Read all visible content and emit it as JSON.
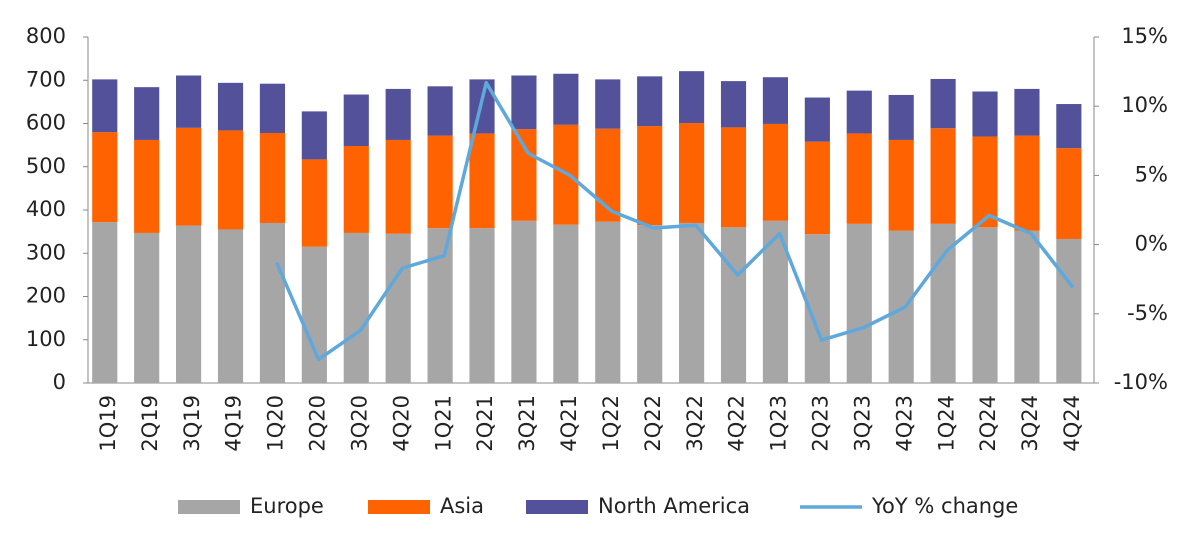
{
  "chart_data": {
    "type": "bar",
    "stacked": true,
    "categories": [
      "1Q19",
      "2Q19",
      "3Q19",
      "4Q19",
      "1Q20",
      "2Q20",
      "3Q20",
      "4Q20",
      "1Q21",
      "2Q21",
      "3Q21",
      "4Q21",
      "1Q22",
      "2Q22",
      "3Q22",
      "4Q22",
      "1Q23",
      "2Q23",
      "3Q23",
      "4Q23",
      "1Q24",
      "2Q24",
      "3Q24",
      "4Q24"
    ],
    "series": [
      {
        "name": "Europe",
        "color": "#a6a6a6",
        "type": "bar",
        "values": [
          372,
          347,
          364,
          355,
          370,
          315,
          347,
          345,
          358,
          358,
          375,
          366,
          373,
          365,
          370,
          360,
          375,
          344,
          368,
          352,
          368,
          360,
          352,
          333
        ]
      },
      {
        "name": "Asia",
        "color": "#ff6200",
        "type": "bar",
        "values": [
          208,
          215,
          226,
          229,
          208,
          202,
          201,
          217,
          214,
          219,
          212,
          231,
          215,
          229,
          231,
          231,
          224,
          214,
          209,
          210,
          221,
          210,
          220,
          210
        ]
      },
      {
        "name": "North America",
        "color": "#525199",
        "type": "bar",
        "values": [
          122,
          122,
          121,
          110,
          114,
          111,
          119,
          118,
          114,
          125,
          124,
          118,
          114,
          115,
          120,
          107,
          108,
          102,
          99,
          104,
          114,
          104,
          108,
          102
        ]
      },
      {
        "name": "YoY % change",
        "color": "#5fa8dc",
        "type": "line",
        "axis": "y2",
        "values": [
          null,
          null,
          null,
          null,
          -1.3,
          -8.3,
          -6.2,
          -1.7,
          -0.8,
          11.7,
          6.6,
          5.0,
          2.4,
          1.2,
          1.4,
          -2.2,
          0.8,
          -6.9,
          -6.0,
          -4.5,
          -0.4,
          2.1,
          0.8,
          -3.1
        ]
      }
    ],
    "ylim": [
      0,
      800
    ],
    "yticks": [
      0,
      100,
      200,
      300,
      400,
      500,
      600,
      700,
      800
    ],
    "y2lim": [
      -10,
      15
    ],
    "y2ticks": [
      {
        "value": -10,
        "label": "-10%"
      },
      {
        "value": -5,
        "label": "-5%"
      },
      {
        "value": 0,
        "label": "0%"
      },
      {
        "value": 5,
        "label": "5%"
      },
      {
        "value": 10,
        "label": "10%"
      },
      {
        "value": 15,
        "label": "15%"
      }
    ],
    "grid": false,
    "legend": "bottom"
  }
}
